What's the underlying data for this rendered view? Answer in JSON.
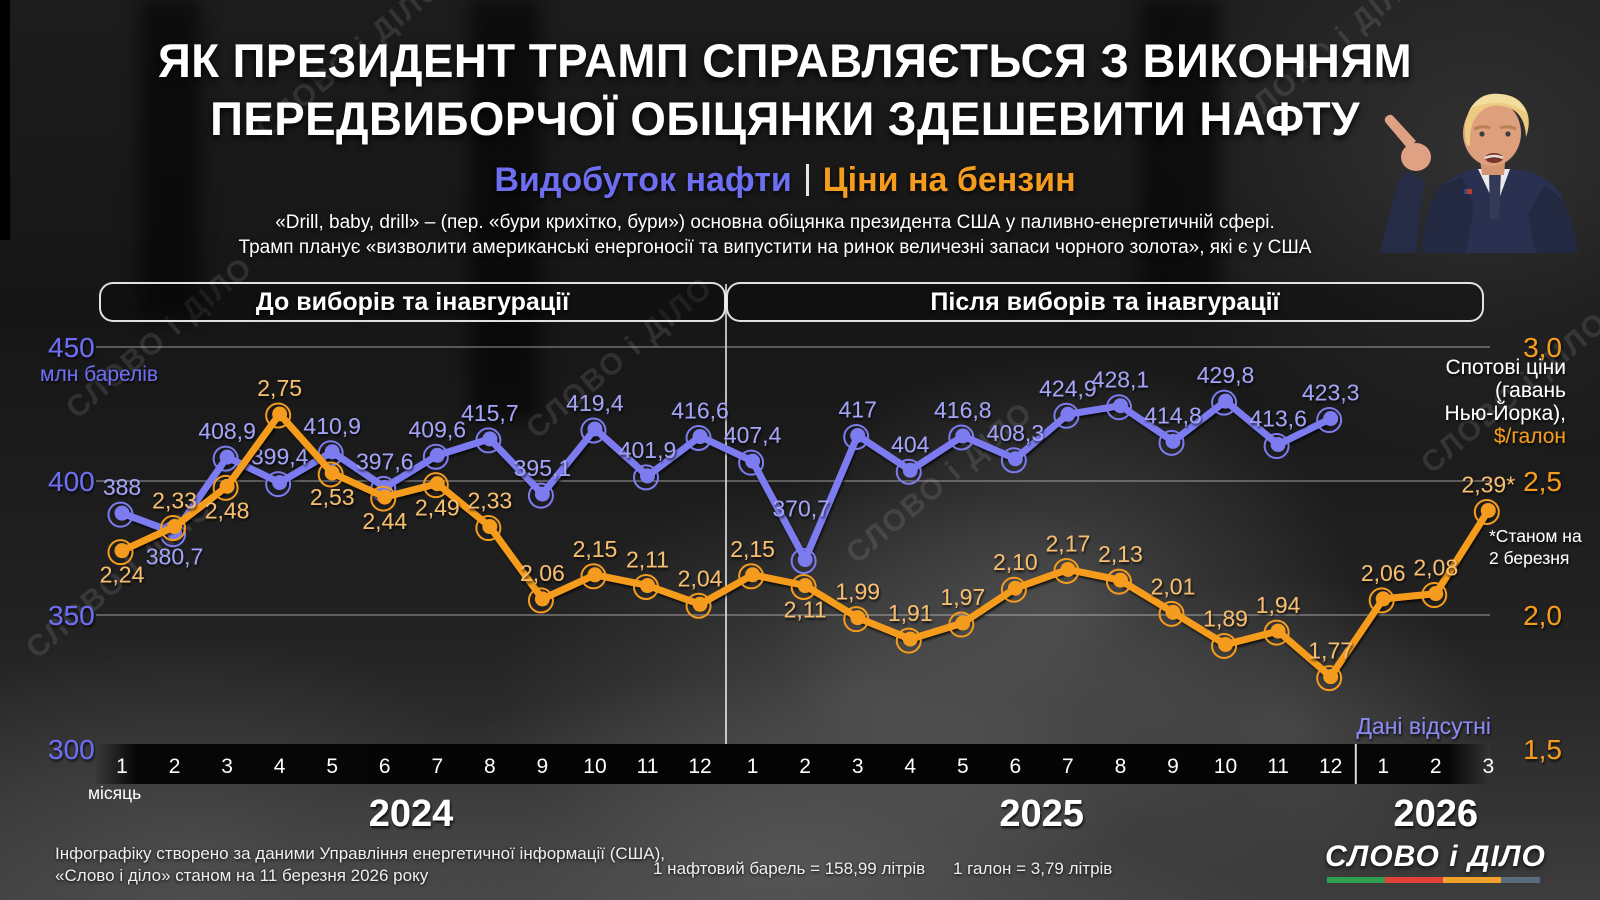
{
  "header": {
    "title_line1": "ЯК ПРЕЗИДЕНТ ТРАМП СПРАВЛЯЄТЬСЯ З ВИКОННЯМ",
    "title_line2": "ПЕРЕДВИБОРЧОЇ ОБІЦЯНКИ ЗДЕШЕВИТИ НАФТУ",
    "legend_oil": "Видобуток нафти",
    "legend_gas": "Ціни на бензин",
    "desc_line1": "«Drill, baby, drill» – (пер. «бури крихітко, бури») основна обіцянка президента США у паливно-енергетичній сфері.",
    "desc_line2": "Трамп планує «визволити американські енергоносії та випустити на ринок величезні запаси чорного золота», які є у США"
  },
  "periods": {
    "before": "До виборів та інавгурації",
    "after": "Після виборів та інавгурації"
  },
  "colors": {
    "oil_line": "#7c7cf0",
    "oil_label": "#a3a3f7",
    "oil_axis": "#6e6ef2",
    "gas_line": "#f59c1f",
    "gas_label": "#f7be6f",
    "gas_axis": "#f59c1f",
    "grid": "#d8d8d8",
    "no_data": "#8b8bf5"
  },
  "chart_data": {
    "type": "line",
    "title": "Видобуток нафти | Ціни на бензин",
    "x_months": [
      "1",
      "2",
      "3",
      "4",
      "5",
      "6",
      "7",
      "8",
      "9",
      "10",
      "11",
      "12",
      "1",
      "2",
      "3",
      "4",
      "5",
      "6",
      "7",
      "8",
      "9",
      "10",
      "11",
      "12",
      "1",
      "2",
      "3"
    ],
    "x_label": "місяць",
    "years": [
      {
        "label": "2024",
        "span": [
          0,
          11
        ]
      },
      {
        "label": "2025",
        "span": [
          12,
          23
        ]
      },
      {
        "label": "2026",
        "span": [
          24,
          26
        ]
      }
    ],
    "left_axis": {
      "ticks": [
        "450",
        "400",
        "350",
        "300"
      ],
      "values": [
        450,
        400,
        350,
        300
      ],
      "unit_label": "млн барелів",
      "range": [
        300,
        450
      ]
    },
    "right_axis": {
      "ticks": [
        "3,0",
        "2,5",
        "2,0",
        "1,5"
      ],
      "values": [
        3.0,
        2.5,
        2.0,
        1.5
      ],
      "title_lines": [
        "Спотові ціни",
        "(гавань",
        "Нью-Йорка),"
      ],
      "unit": "$/галон",
      "range": [
        1.5,
        3.0
      ]
    },
    "series": [
      {
        "name": "Видобуток нафти",
        "unit": "млн барелів",
        "values": [
          388,
          380.7,
          408.9,
          399.4,
          410.9,
          397.6,
          409.6,
          415.7,
          395.1,
          419.4,
          401.9,
          416.6,
          407.4,
          370.7,
          417,
          404,
          416.8,
          408.3,
          424.9,
          428.1,
          414.8,
          429.8,
          413.6,
          423.3,
          null,
          null,
          null
        ],
        "labels": [
          "388",
          "380,7",
          "408,9",
          "399,4",
          "410,9",
          "397,6",
          "409,6",
          "415,7",
          "395,1",
          "419,4",
          "401,9",
          "416,6",
          "407,4",
          "370,7",
          "417",
          "404",
          "416,8",
          "408,3",
          "424,9",
          "428,1",
          "414,8",
          "429,8",
          "413,6",
          "423,3"
        ],
        "label_below": [
          1
        ],
        "label_offsets": {
          "13": [
            -4,
            -43
          ]
        }
      },
      {
        "name": "Ціни на бензин",
        "unit": "$/галон",
        "values": [
          2.24,
          2.33,
          2.48,
          2.75,
          2.53,
          2.44,
          2.49,
          2.33,
          2.06,
          2.15,
          2.11,
          2.04,
          2.15,
          2.11,
          1.99,
          1.91,
          1.97,
          2.1,
          2.17,
          2.13,
          2.01,
          1.89,
          1.94,
          1.77,
          2.06,
          2.08,
          2.39
        ],
        "labels": [
          "2,24",
          "2,33",
          "2,48",
          "2,75",
          "2,53",
          "2,44",
          "2,49",
          "2,33",
          "2,06",
          "2,15",
          "2,11",
          "2,04",
          "2,15",
          "2,11",
          "1,99",
          "1,91",
          "1,97",
          "2,10",
          "2,17",
          "2,13",
          "2,01",
          "1,89",
          "1,94",
          "1,77",
          "2,06",
          "2,08",
          "2,39*"
        ],
        "label_below": [
          0,
          2,
          4,
          5,
          6,
          13
        ],
        "label_offsets": {}
      }
    ],
    "no_data_label": "Дані відсутні",
    "footnote_marker_lines": [
      "*Станом на",
      "2 березня"
    ]
  },
  "footer": {
    "source_line1": "Інфографіку створено за даними Управління енергетичної інформації (США),",
    "source_line2": "«Слово і діло» станом на 11 березня 2026 року",
    "barrel_note": "1 нафтовий барель = 158,99 літрів",
    "gallon_note": "1 галон = 3,79 літрів"
  },
  "watermark": "СЛОВО і ДІЛО",
  "logo": {
    "text": "СЛОВО і ДІЛО",
    "stripe_colors": [
      "#2f9e4e",
      "#e2403a",
      "#f2a12c",
      "#5a6b7c"
    ]
  }
}
